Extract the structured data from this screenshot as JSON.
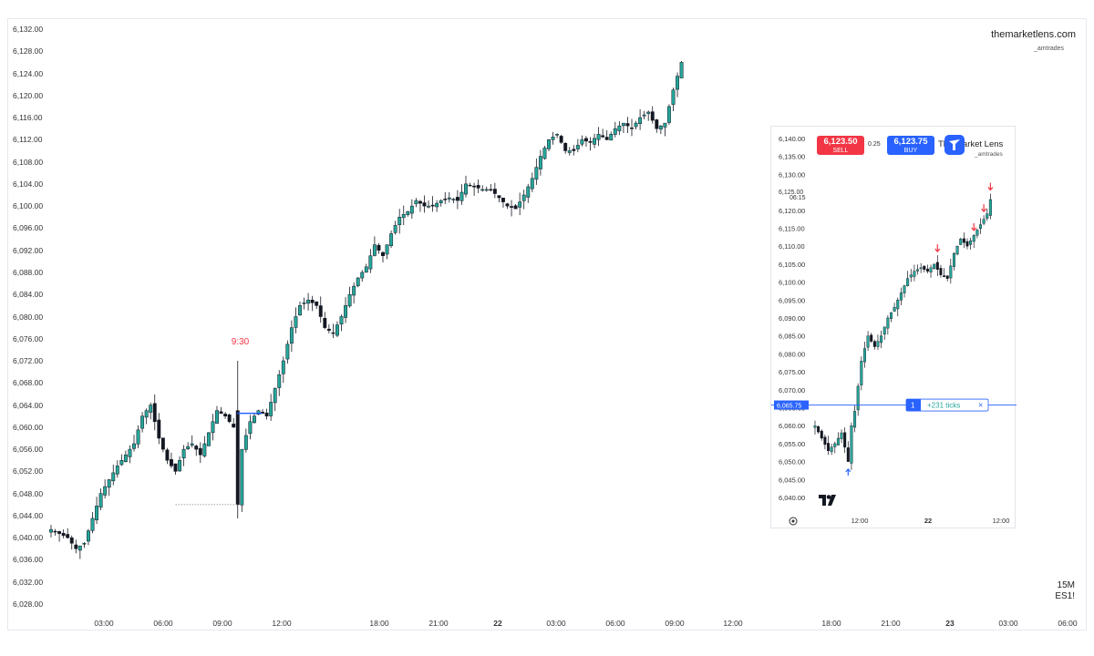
{
  "brand": {
    "name": "themarketlens.com",
    "handle": "_amtrades"
  },
  "timeframe": "15M",
  "symbol": "ES1!",
  "annotation_930": "9:30",
  "chart_data": [
    {
      "type": "candlestick",
      "title": "",
      "y_ticks": [
        "6,132.00",
        "6,128.00",
        "6,124.00",
        "6,120.00",
        "6,116.00",
        "6,112.00",
        "6,108.00",
        "6,104.00",
        "6,100.00",
        "6,096.00",
        "6,092.00",
        "6,088.00",
        "6,084.00",
        "6,080.00",
        "6,076.00",
        "6,072.00",
        "6,068.00",
        "6,064.00",
        "6,060.00",
        "6,056.00",
        "6,052.00",
        "6,048.00",
        "6,044.00",
        "6,040.00",
        "6,036.00",
        "6,032.00",
        "6,028.00"
      ],
      "x_ticks": [
        "03:00",
        "06:00",
        "09:00",
        "12:00",
        "18:00",
        "21:00",
        "22",
        "03:00",
        "06:00",
        "09:00",
        "12:00",
        "18:00",
        "21:00",
        "23",
        "03:00",
        "06:00"
      ],
      "ylim": [
        6026,
        6134
      ],
      "grid": false,
      "waypoints": [
        [
          0,
          6041.5
        ],
        [
          4,
          6040
        ],
        [
          6,
          6038
        ],
        [
          8,
          6039
        ],
        [
          12,
          6048
        ],
        [
          16,
          6053
        ],
        [
          20,
          6057
        ],
        [
          22,
          6062
        ],
        [
          24,
          6064
        ],
        [
          26,
          6058
        ],
        [
          28,
          6054
        ],
        [
          30,
          6052
        ],
        [
          32,
          6056
        ],
        [
          34,
          6057
        ],
        [
          36,
          6055
        ],
        [
          38,
          6059
        ],
        [
          40,
          6063
        ],
        [
          42,
          6062
        ],
        [
          44,
          6060
        ],
        [
          45,
          6046
        ],
        [
          46,
          6056
        ],
        [
          48,
          6061
        ],
        [
          50,
          6063
        ],
        [
          52,
          6062
        ],
        [
          54,
          6067
        ],
        [
          56,
          6072
        ],
        [
          58,
          6078
        ],
        [
          60,
          6082
        ],
        [
          62,
          6083
        ],
        [
          64,
          6082
        ],
        [
          66,
          6078
        ],
        [
          68,
          6077
        ],
        [
          70,
          6080
        ],
        [
          72,
          6084
        ],
        [
          74,
          6087
        ],
        [
          76,
          6089
        ],
        [
          78,
          6093
        ],
        [
          80,
          6091
        ],
        [
          82,
          6095
        ],
        [
          84,
          6098
        ],
        [
          86,
          6099
        ],
        [
          88,
          6101
        ],
        [
          90,
          6100
        ],
        [
          92,
          6100
        ],
        [
          94,
          6101
        ],
        [
          96,
          6101.5
        ],
        [
          98,
          6101
        ],
        [
          100,
          6104
        ],
        [
          102,
          6103.5
        ],
        [
          104,
          6103
        ],
        [
          106,
          6103
        ],
        [
          108,
          6101.5
        ],
        [
          110,
          6100
        ],
        [
          112,
          6099.5
        ],
        [
          114,
          6102
        ],
        [
          116,
          6105
        ],
        [
          118,
          6109
        ],
        [
          120,
          6112
        ],
        [
          122,
          6113
        ],
        [
          124,
          6110
        ],
        [
          126,
          6110
        ],
        [
          128,
          6112
        ],
        [
          130,
          6111.5
        ],
        [
          132,
          6113
        ],
        [
          134,
          6112
        ],
        [
          136,
          6114
        ],
        [
          138,
          6115
        ],
        [
          140,
          6114
        ],
        [
          142,
          6116
        ],
        [
          144,
          6117
        ],
        [
          146,
          6114
        ],
        [
          148,
          6115
        ],
        [
          150,
          6121
        ],
        [
          152,
          6126
        ]
      ],
      "highlight_candle_index": 45,
      "annotation": {
        "label": "9:30",
        "candle_index": 45
      },
      "marker_line": {
        "price": 6062.5,
        "from_index": 46,
        "to_index": 50,
        "color": "#2962ff"
      },
      "dotted_line": {
        "price": 6046,
        "from_index": 30,
        "to_index": 45
      },
      "bull_color": "#26a69a",
      "bear_color": "#131722"
    },
    {
      "type": "candlestick",
      "title": "",
      "y_ticks": [
        "6,140.00",
        "6,135.00",
        "6,130.00",
        "6,125.00",
        "6,120.00",
        "6,115.00",
        "6,110.00",
        "6,105.00",
        "6,100.00",
        "6,095.00",
        "6,090.00",
        "6,085.00",
        "6,080.00",
        "6,075.00",
        "6,070.00",
        "6,065.00",
        "6,060.00",
        "6,055.00",
        "6,050.00",
        "6,045.00",
        "6,040.00"
      ],
      "x_ticks": [
        "12:00",
        "22",
        "12:00"
      ],
      "ylim": [
        6037,
        6142
      ],
      "grid": false,
      "waypoints": [
        [
          0,
          6060
        ],
        [
          4,
          6053
        ],
        [
          6,
          6055
        ],
        [
          8,
          6058
        ],
        [
          10,
          6050
        ],
        [
          11,
          6060
        ],
        [
          12,
          6064
        ],
        [
          14,
          6078
        ],
        [
          16,
          6085
        ],
        [
          18,
          6082
        ],
        [
          20,
          6085
        ],
        [
          22,
          6090
        ],
        [
          24,
          6093
        ],
        [
          26,
          6097
        ],
        [
          28,
          6101
        ],
        [
          30,
          6103
        ],
        [
          32,
          6104
        ],
        [
          34,
          6103
        ],
        [
          36,
          6105
        ],
        [
          38,
          6102
        ],
        [
          40,
          6101
        ],
        [
          42,
          6108
        ],
        [
          44,
          6112
        ],
        [
          46,
          6110
        ],
        [
          48,
          6113
        ],
        [
          50,
          6116
        ],
        [
          52,
          6119
        ],
        [
          53,
          6123
        ]
      ],
      "position_line": {
        "price": 6065.75,
        "price_label": "6,065.75",
        "quantity": "1",
        "pnl": "+231 ticks"
      },
      "trade": {
        "bid": "6,123.50",
        "bid_label": "SELL",
        "spread": "0.25",
        "ask": "6,123.75",
        "ask_label": "BUY"
      },
      "countdown": {
        "price": 6125,
        "price_label": "6,125.00",
        "time": "06:15"
      },
      "markers": [
        {
          "type": "arrow-up",
          "color": "#2962ff",
          "index": 10
        },
        {
          "type": "arrow-down",
          "color": "#f23645",
          "index": 37
        },
        {
          "type": "arrow-down",
          "color": "#f23645",
          "index": 48
        },
        {
          "type": "arrow-down",
          "color": "#f23645",
          "index": 51
        },
        {
          "type": "arrow-down",
          "color": "#f23645",
          "index": 53
        }
      ]
    }
  ],
  "inset": {
    "brand": "The Market Lens",
    "handle": "_amtrades"
  }
}
